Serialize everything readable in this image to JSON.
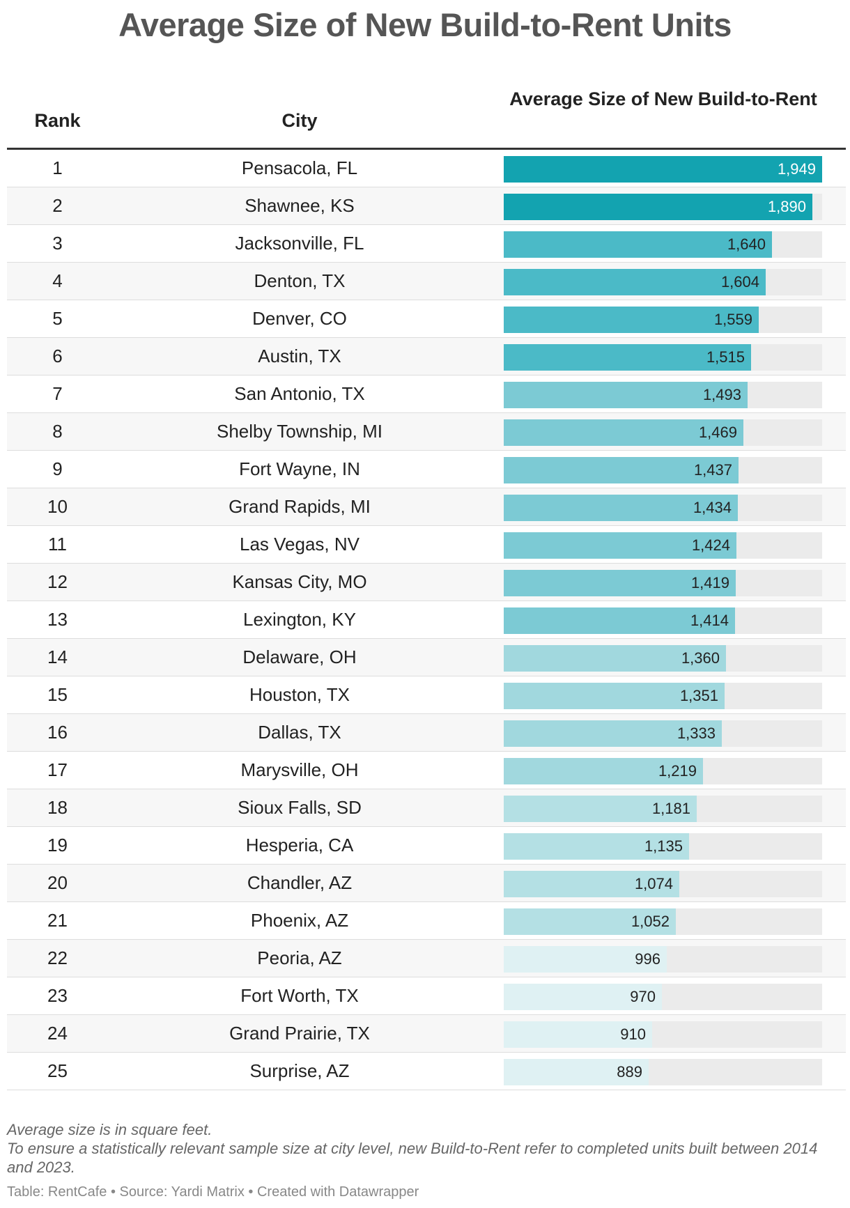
{
  "title": "Average Size of New Build-to-Rent Units",
  "columns": {
    "rank": "Rank",
    "city": "City",
    "size": "Average Size of New Build-to-Rent"
  },
  "colors": {
    "tier1": "#13a3b0",
    "tier2": "#4bbac7",
    "tier3": "#7ccad4",
    "tier4": "#a1d8de",
    "tier5": "#b4e0e4",
    "tier6": "#dff1f3",
    "track": "#ebebeb"
  },
  "chart_data": {
    "type": "table",
    "title": "Average Size of New Build-to-Rent Units",
    "unit": "square feet",
    "max": 1949,
    "rows": [
      {
        "rank": "1",
        "city": "Pensacola, FL",
        "value": 1949,
        "label": "1,949",
        "tier": "tier1"
      },
      {
        "rank": "2",
        "city": "Shawnee, KS",
        "value": 1890,
        "label": "1,890",
        "tier": "tier1"
      },
      {
        "rank": "3",
        "city": "Jacksonville, FL",
        "value": 1640,
        "label": "1,640",
        "tier": "tier2"
      },
      {
        "rank": "4",
        "city": "Denton, TX",
        "value": 1604,
        "label": "1,604",
        "tier": "tier2"
      },
      {
        "rank": "5",
        "city": "Denver, CO",
        "value": 1559,
        "label": "1,559",
        "tier": "tier2"
      },
      {
        "rank": "6",
        "city": "Austin, TX",
        "value": 1515,
        "label": "1,515",
        "tier": "tier2"
      },
      {
        "rank": "7",
        "city": "San Antonio, TX",
        "value": 1493,
        "label": "1,493",
        "tier": "tier3"
      },
      {
        "rank": "8",
        "city": "Shelby Township, MI",
        "value": 1469,
        "label": "1,469",
        "tier": "tier3"
      },
      {
        "rank": "9",
        "city": "Fort Wayne, IN",
        "value": 1437,
        "label": "1,437",
        "tier": "tier3"
      },
      {
        "rank": "10",
        "city": "Grand Rapids, MI",
        "value": 1434,
        "label": "1,434",
        "tier": "tier3"
      },
      {
        "rank": "11",
        "city": "Las Vegas, NV",
        "value": 1424,
        "label": "1,424",
        "tier": "tier3"
      },
      {
        "rank": "12",
        "city": "Kansas City, MO",
        "value": 1419,
        "label": "1,419",
        "tier": "tier3"
      },
      {
        "rank": "13",
        "city": "Lexington, KY",
        "value": 1414,
        "label": "1,414",
        "tier": "tier3"
      },
      {
        "rank": "14",
        "city": "Delaware, OH",
        "value": 1360,
        "label": "1,360",
        "tier": "tier4"
      },
      {
        "rank": "15",
        "city": "Houston, TX",
        "value": 1351,
        "label": "1,351",
        "tier": "tier4"
      },
      {
        "rank": "16",
        "city": "Dallas, TX",
        "value": 1333,
        "label": "1,333",
        "tier": "tier4"
      },
      {
        "rank": "17",
        "city": "Marysville, OH",
        "value": 1219,
        "label": "1,219",
        "tier": "tier4"
      },
      {
        "rank": "18",
        "city": "Sioux Falls, SD",
        "value": 1181,
        "label": "1,181",
        "tier": "tier5"
      },
      {
        "rank": "19",
        "city": "Hesperia, CA",
        "value": 1135,
        "label": "1,135",
        "tier": "tier5"
      },
      {
        "rank": "20",
        "city": "Chandler, AZ",
        "value": 1074,
        "label": "1,074",
        "tier": "tier5"
      },
      {
        "rank": "21",
        "city": "Phoenix, AZ",
        "value": 1052,
        "label": "1,052",
        "tier": "tier5"
      },
      {
        "rank": "22",
        "city": "Peoria, AZ",
        "value": 996,
        "label": "996",
        "tier": "tier6"
      },
      {
        "rank": "23",
        "city": "Fort Worth, TX",
        "value": 970,
        "label": "970",
        "tier": "tier6"
      },
      {
        "rank": "24",
        "city": "Grand Prairie, TX",
        "value": 910,
        "label": "910",
        "tier": "tier6"
      },
      {
        "rank": "25",
        "city": "Surprise, AZ",
        "value": 889,
        "label": "889",
        "tier": "tier6"
      }
    ]
  },
  "notes": {
    "line1": "Average size is in square feet.",
    "line2": "To ensure a statistically relevant sample size at city level, new Build-to-Rent refer to completed units built between 2014 and 2023."
  },
  "source": "Table: RentCafe • Source: Yardi Matrix • Created with Datawrapper"
}
